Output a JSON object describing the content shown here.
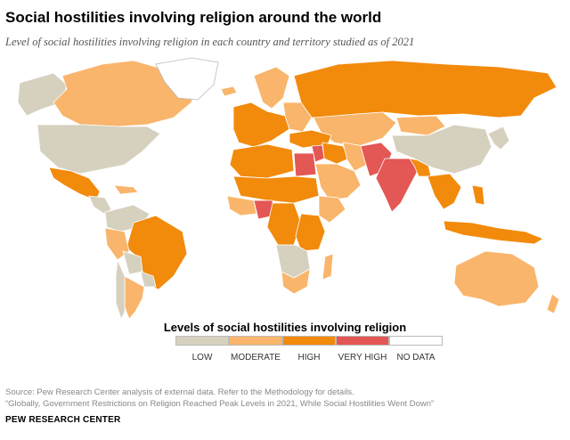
{
  "header": {
    "title": "Social hostilities involving religion around the world",
    "subtitle": "Level of social hostilities involving religion in each country and territory studied as of 2021"
  },
  "colors": {
    "low": "#d6d0bf",
    "moderate": "#f9b56b",
    "high": "#f28a0c",
    "very_high": "#e35754",
    "no_data": "#ffffff",
    "ocean": "#ffffff",
    "border": "#ffffff"
  },
  "legend": {
    "title": "Levels of social hostilities involving religion",
    "items": [
      {
        "label": "LOW",
        "color": "#d6d0bf"
      },
      {
        "label": "MODERATE",
        "color": "#f9b56b"
      },
      {
        "label": "HIGH",
        "color": "#f28a0c"
      },
      {
        "label": "VERY HIGH",
        "color": "#e35754"
      },
      {
        "label": "NO DATA",
        "color": "#ffffff"
      }
    ]
  },
  "footer": {
    "source_line1": "Source: Pew Research Center analysis of external data. Refer to the Methodology for details.",
    "source_line2": "“Globally, Government Restrictions on Religion Reached Peak Levels in 2021, While Social Hostilities Went Down”",
    "brand": "PEW RESEARCH CENTER"
  },
  "map_regions": [
    {
      "name": "alaska",
      "level": "low"
    },
    {
      "name": "canada",
      "level": "moderate"
    },
    {
      "name": "greenland",
      "level": "no_data"
    },
    {
      "name": "united-states",
      "level": "low"
    },
    {
      "name": "mexico",
      "level": "high"
    },
    {
      "name": "central-america",
      "level": "low"
    },
    {
      "name": "caribbean",
      "level": "moderate"
    },
    {
      "name": "colombia-venezuela",
      "level": "low"
    },
    {
      "name": "brazil",
      "level": "high"
    },
    {
      "name": "peru",
      "level": "moderate"
    },
    {
      "name": "bolivia",
      "level": "low"
    },
    {
      "name": "argentina",
      "level": "moderate"
    },
    {
      "name": "chile",
      "level": "low"
    },
    {
      "name": "uruguay-paraguay",
      "level": "low"
    },
    {
      "name": "iceland",
      "level": "moderate"
    },
    {
      "name": "scandinavia",
      "level": "moderate"
    },
    {
      "name": "western-europe",
      "level": "high"
    },
    {
      "name": "eastern-europe",
      "level": "moderate"
    },
    {
      "name": "russia",
      "level": "high"
    },
    {
      "name": "kazakhstan-central-asia",
      "level": "moderate"
    },
    {
      "name": "turkey-caucasus",
      "level": "high"
    },
    {
      "name": "middle-east",
      "level": "high"
    },
    {
      "name": "israel-syria",
      "level": "very_high"
    },
    {
      "name": "arabia",
      "level": "moderate"
    },
    {
      "name": "iran",
      "level": "moderate"
    },
    {
      "name": "afghanistan-pakistan",
      "level": "very_high"
    },
    {
      "name": "india",
      "level": "very_high"
    },
    {
      "name": "nepal-bangladesh",
      "level": "high"
    },
    {
      "name": "china",
      "level": "low"
    },
    {
      "name": "mongolia",
      "level": "moderate"
    },
    {
      "name": "korea-japan",
      "level": "low"
    },
    {
      "name": "southeast-asia",
      "level": "high"
    },
    {
      "name": "indonesia",
      "level": "high"
    },
    {
      "name": "philippines",
      "level": "high"
    },
    {
      "name": "australia",
      "level": "moderate"
    },
    {
      "name": "new-zealand",
      "level": "moderate"
    },
    {
      "name": "north-africa",
      "level": "high"
    },
    {
      "name": "egypt",
      "level": "very_high"
    },
    {
      "name": "sahel",
      "level": "high"
    },
    {
      "name": "west-africa",
      "level": "moderate"
    },
    {
      "name": "nigeria",
      "level": "very_high"
    },
    {
      "name": "central-africa",
      "level": "high"
    },
    {
      "name": "east-africa",
      "level": "high"
    },
    {
      "name": "horn-of-africa",
      "level": "moderate"
    },
    {
      "name": "southern-africa",
      "level": "low"
    },
    {
      "name": "south-africa",
      "level": "moderate"
    },
    {
      "name": "madagascar",
      "level": "moderate"
    }
  ]
}
